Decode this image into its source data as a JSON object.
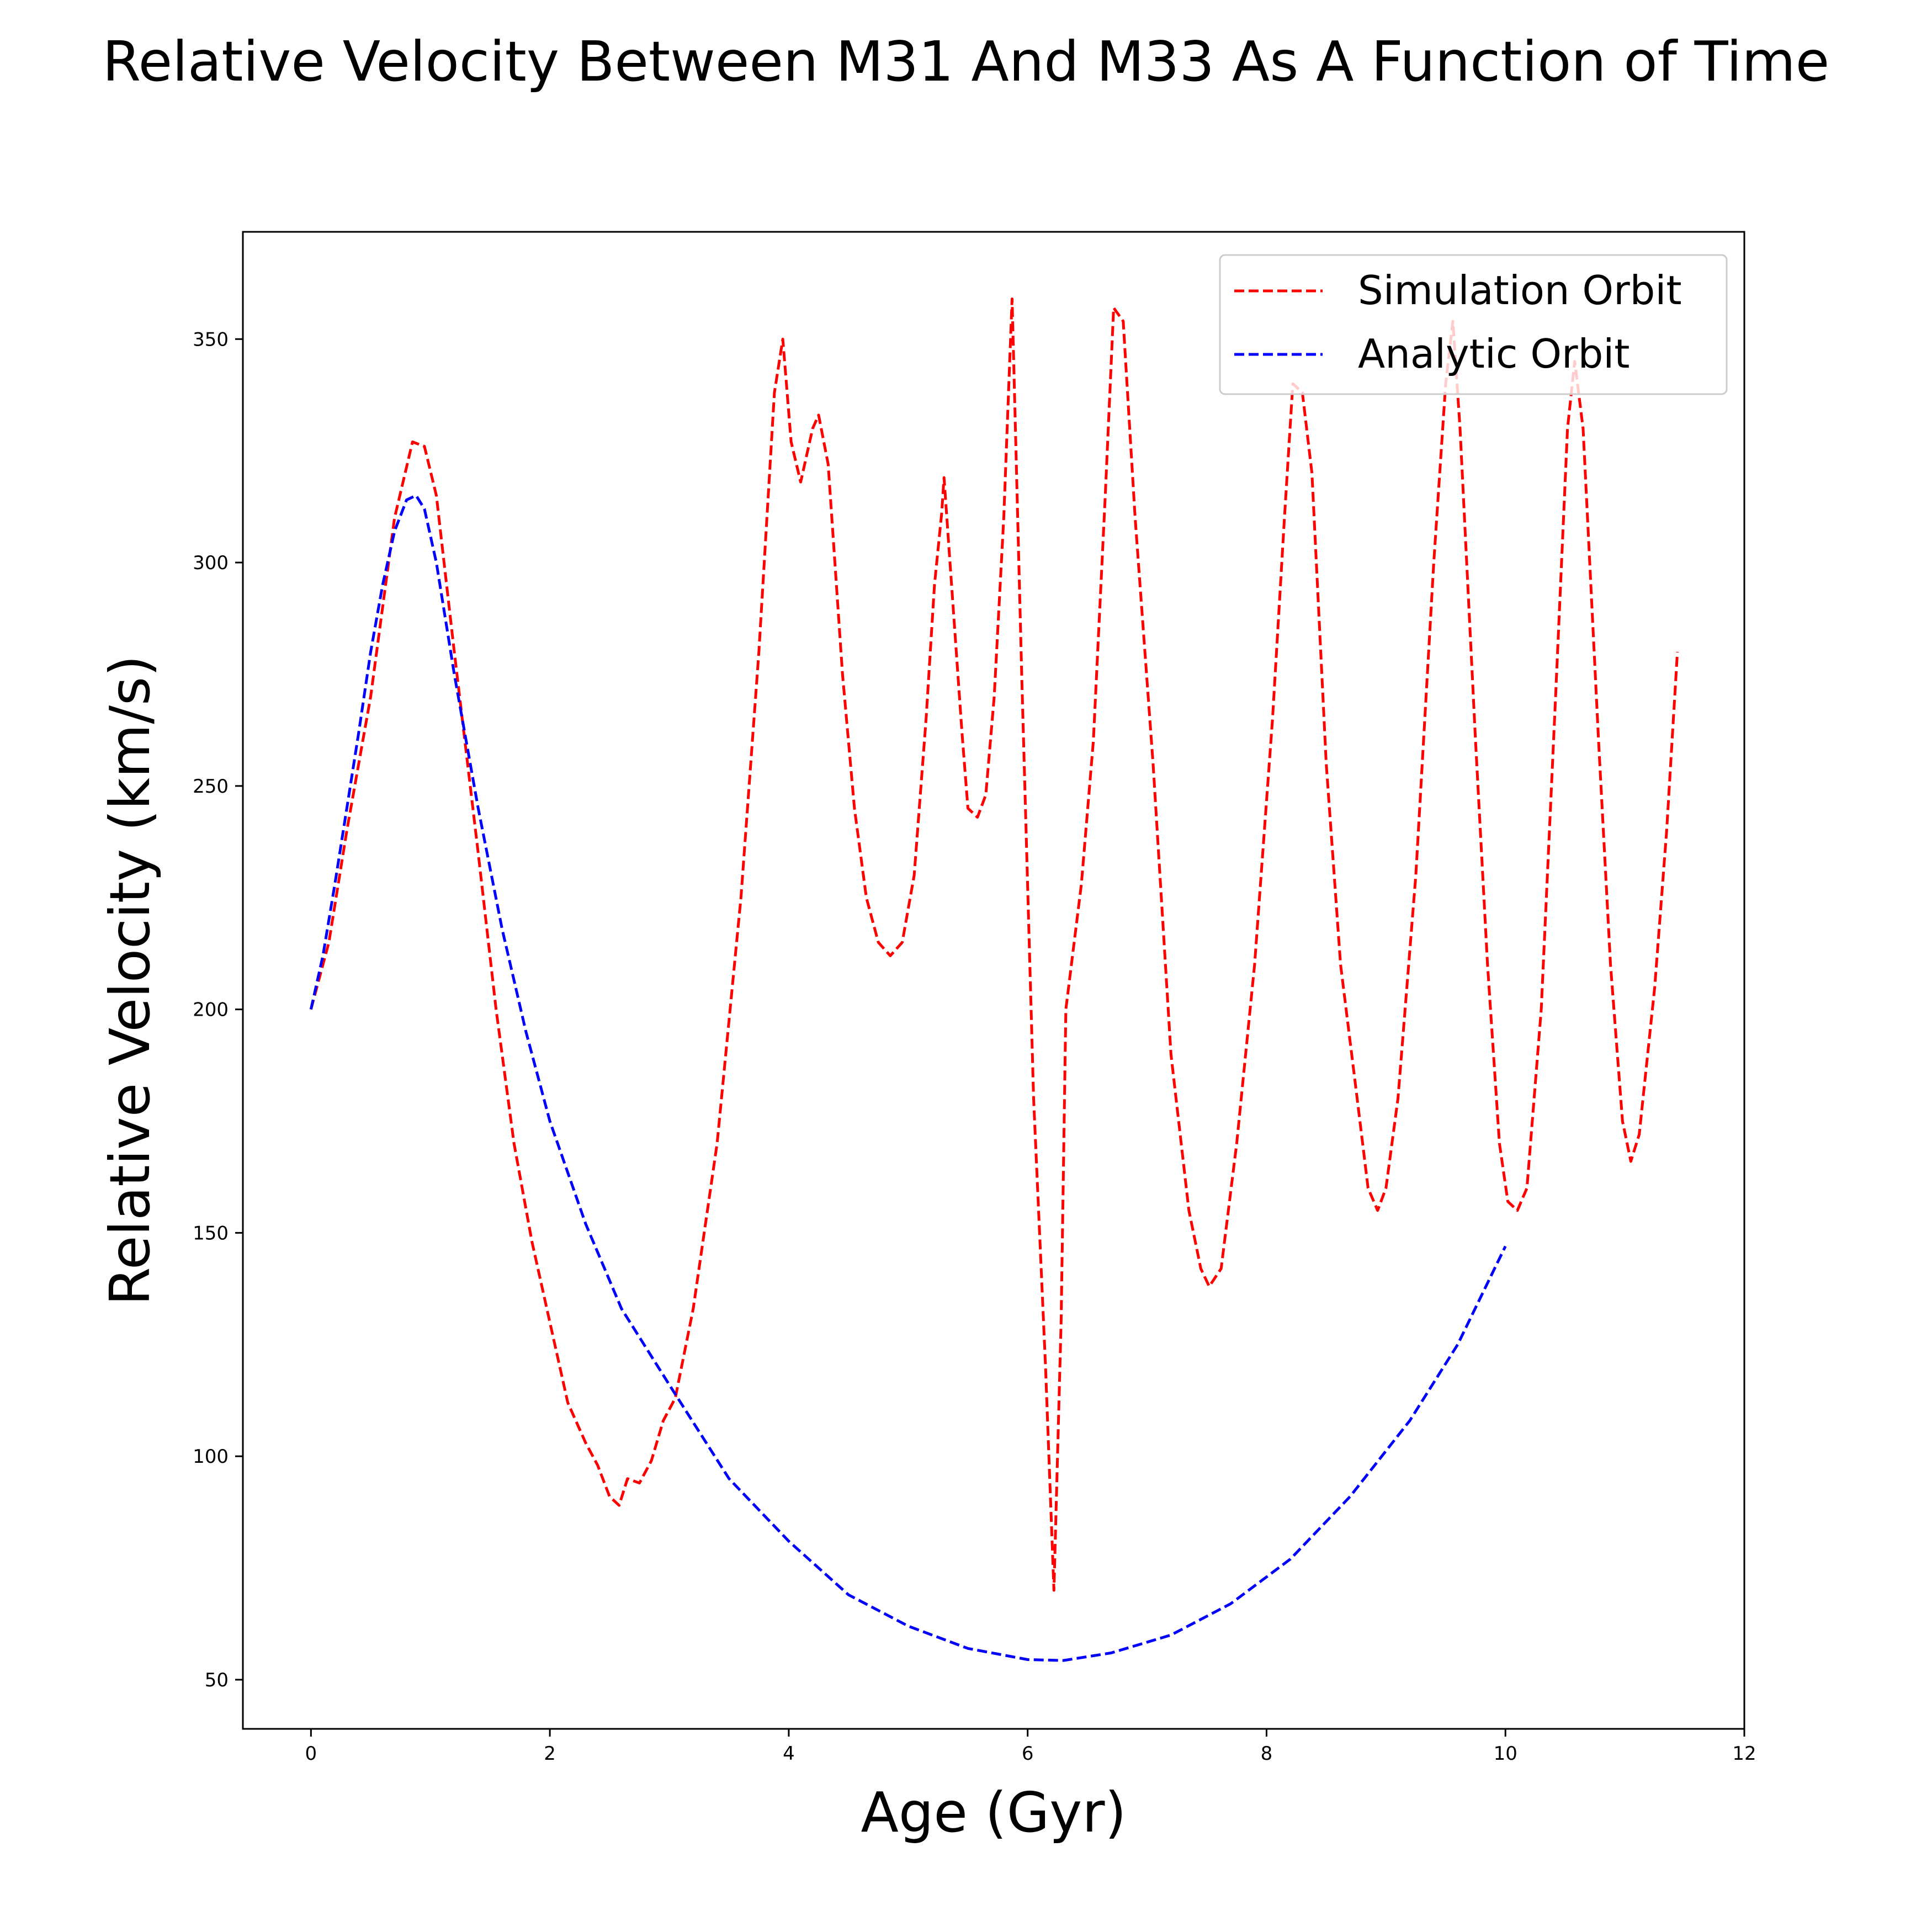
{
  "chart_data": {
    "type": "line",
    "title": "Relative Velocity Between M31 And M33 As A Function of Time",
    "xlabel": "Age (Gyr)",
    "ylabel": "Relative Velocity (km/s)",
    "xlim": [
      -0.57,
      12.0
    ],
    "ylim": [
      39,
      374
    ],
    "xticks": [
      0,
      2,
      4,
      6,
      8,
      10,
      12
    ],
    "yticks": [
      50,
      100,
      150,
      200,
      250,
      300,
      350
    ],
    "grid": false,
    "legend_position": "top-right",
    "series": [
      {
        "name": "Simulation Orbit",
        "color": "#ff0000",
        "style": "dashed",
        "points": [
          [
            0.0,
            200
          ],
          [
            0.15,
            215
          ],
          [
            0.3,
            240
          ],
          [
            0.5,
            270
          ],
          [
            0.7,
            310
          ],
          [
            0.85,
            327
          ],
          [
            0.95,
            326
          ],
          [
            1.05,
            315
          ],
          [
            1.2,
            280
          ],
          [
            1.4,
            235
          ],
          [
            1.55,
            200
          ],
          [
            1.7,
            170
          ],
          [
            1.85,
            148
          ],
          [
            2.0,
            130
          ],
          [
            2.15,
            112
          ],
          [
            2.3,
            103
          ],
          [
            2.4,
            98
          ],
          [
            2.5,
            91
          ],
          [
            2.58,
            89
          ],
          [
            2.65,
            95
          ],
          [
            2.75,
            94
          ],
          [
            2.85,
            99
          ],
          [
            2.95,
            108
          ],
          [
            3.05,
            113
          ],
          [
            3.2,
            133
          ],
          [
            3.4,
            170
          ],
          [
            3.6,
            225
          ],
          [
            3.75,
            280
          ],
          [
            3.88,
            338
          ],
          [
            3.95,
            350
          ],
          [
            4.02,
            327
          ],
          [
            4.1,
            318
          ],
          [
            4.2,
            330
          ],
          [
            4.25,
            333
          ],
          [
            4.33,
            322
          ],
          [
            4.45,
            275
          ],
          [
            4.55,
            245
          ],
          [
            4.65,
            225
          ],
          [
            4.75,
            215
          ],
          [
            4.85,
            212
          ],
          [
            4.95,
            215
          ],
          [
            5.05,
            230
          ],
          [
            5.15,
            265
          ],
          [
            5.22,
            295
          ],
          [
            5.28,
            311
          ],
          [
            5.3,
            319
          ],
          [
            5.35,
            300
          ],
          [
            5.45,
            262
          ],
          [
            5.5,
            245
          ],
          [
            5.58,
            243
          ],
          [
            5.65,
            248
          ],
          [
            5.72,
            270
          ],
          [
            5.8,
            310
          ],
          [
            5.87,
            359
          ],
          [
            5.95,
            275
          ],
          [
            6.05,
            180
          ],
          [
            6.15,
            120
          ],
          [
            6.22,
            70
          ],
          [
            6.28,
            130
          ],
          [
            6.32,
            200
          ],
          [
            6.45,
            228
          ],
          [
            6.55,
            260
          ],
          [
            6.65,
            315
          ],
          [
            6.72,
            357
          ],
          [
            6.8,
            354
          ],
          [
            6.9,
            310
          ],
          [
            7.05,
            255
          ],
          [
            7.2,
            190
          ],
          [
            7.35,
            155
          ],
          [
            7.45,
            142
          ],
          [
            7.52,
            138
          ],
          [
            7.62,
            142
          ],
          [
            7.75,
            170
          ],
          [
            7.9,
            210
          ],
          [
            8.05,
            265
          ],
          [
            8.15,
            310
          ],
          [
            8.22,
            340
          ],
          [
            8.3,
            338
          ],
          [
            8.38,
            320
          ],
          [
            8.5,
            255
          ],
          [
            8.62,
            210
          ],
          [
            8.75,
            182
          ],
          [
            8.85,
            160
          ],
          [
            8.93,
            155
          ],
          [
            9.0,
            160
          ],
          [
            9.1,
            180
          ],
          [
            9.25,
            230
          ],
          [
            9.4,
            300
          ],
          [
            9.5,
            340
          ],
          [
            9.56,
            354
          ],
          [
            9.62,
            330
          ],
          [
            9.75,
            260
          ],
          [
            9.85,
            210
          ],
          [
            9.95,
            170
          ],
          [
            10.02,
            157
          ],
          [
            10.1,
            155
          ],
          [
            10.18,
            160
          ],
          [
            10.3,
            200
          ],
          [
            10.42,
            270
          ],
          [
            10.52,
            330
          ],
          [
            10.58,
            345
          ],
          [
            10.65,
            330
          ],
          [
            10.78,
            260
          ],
          [
            10.88,
            210
          ],
          [
            10.98,
            175
          ],
          [
            11.05,
            166
          ],
          [
            11.12,
            172
          ],
          [
            11.25,
            205
          ],
          [
            11.35,
            240
          ],
          [
            11.44,
            280
          ]
        ]
      },
      {
        "name": "Analytic Orbit",
        "color": "#0000ff",
        "style": "dashed",
        "points": [
          [
            0.0,
            200
          ],
          [
            0.1,
            212
          ],
          [
            0.2,
            228
          ],
          [
            0.3,
            245
          ],
          [
            0.4,
            262
          ],
          [
            0.5,
            280
          ],
          [
            0.6,
            295
          ],
          [
            0.7,
            307
          ],
          [
            0.8,
            314
          ],
          [
            0.88,
            315
          ],
          [
            0.95,
            312
          ],
          [
            1.05,
            300
          ],
          [
            1.2,
            275
          ],
          [
            1.4,
            245
          ],
          [
            1.6,
            218
          ],
          [
            1.8,
            195
          ],
          [
            2.0,
            175
          ],
          [
            2.3,
            152
          ],
          [
            2.6,
            133
          ],
          [
            3.0,
            116
          ],
          [
            3.5,
            95
          ],
          [
            4.0,
            81
          ],
          [
            4.5,
            69
          ],
          [
            5.0,
            62
          ],
          [
            5.5,
            57
          ],
          [
            6.0,
            54.5
          ],
          [
            6.3,
            54.3
          ],
          [
            6.7,
            56
          ],
          [
            7.2,
            60
          ],
          [
            7.7,
            67
          ],
          [
            8.2,
            77
          ],
          [
            8.7,
            91
          ],
          [
            9.2,
            108
          ],
          [
            9.6,
            125
          ],
          [
            10.0,
            147
          ]
        ]
      }
    ]
  }
}
